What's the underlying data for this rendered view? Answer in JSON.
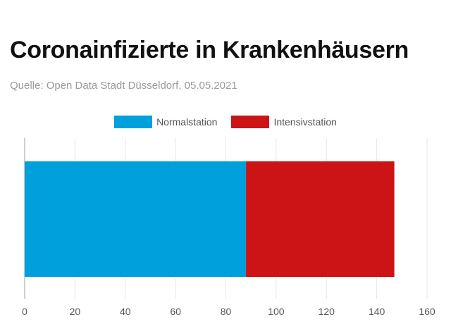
{
  "title": "Coronainfizierte in Krankenhäusern",
  "subtitle": "Quelle: Open Data Stadt Düsseldorf, 05.05.2021",
  "chart_data": {
    "type": "bar",
    "orientation": "horizontal",
    "stacked": true,
    "categories": [
      ""
    ],
    "series": [
      {
        "name": "Normalstation",
        "values": [
          88
        ],
        "color": "#00a0dc"
      },
      {
        "name": "Intensivstation",
        "values": [
          59
        ],
        "color": "#cc1416"
      }
    ],
    "xlim": [
      0,
      160
    ],
    "xticks": [
      0,
      20,
      40,
      60,
      80,
      100,
      120,
      140,
      160
    ],
    "grid": true,
    "legend_position": "top-center"
  }
}
